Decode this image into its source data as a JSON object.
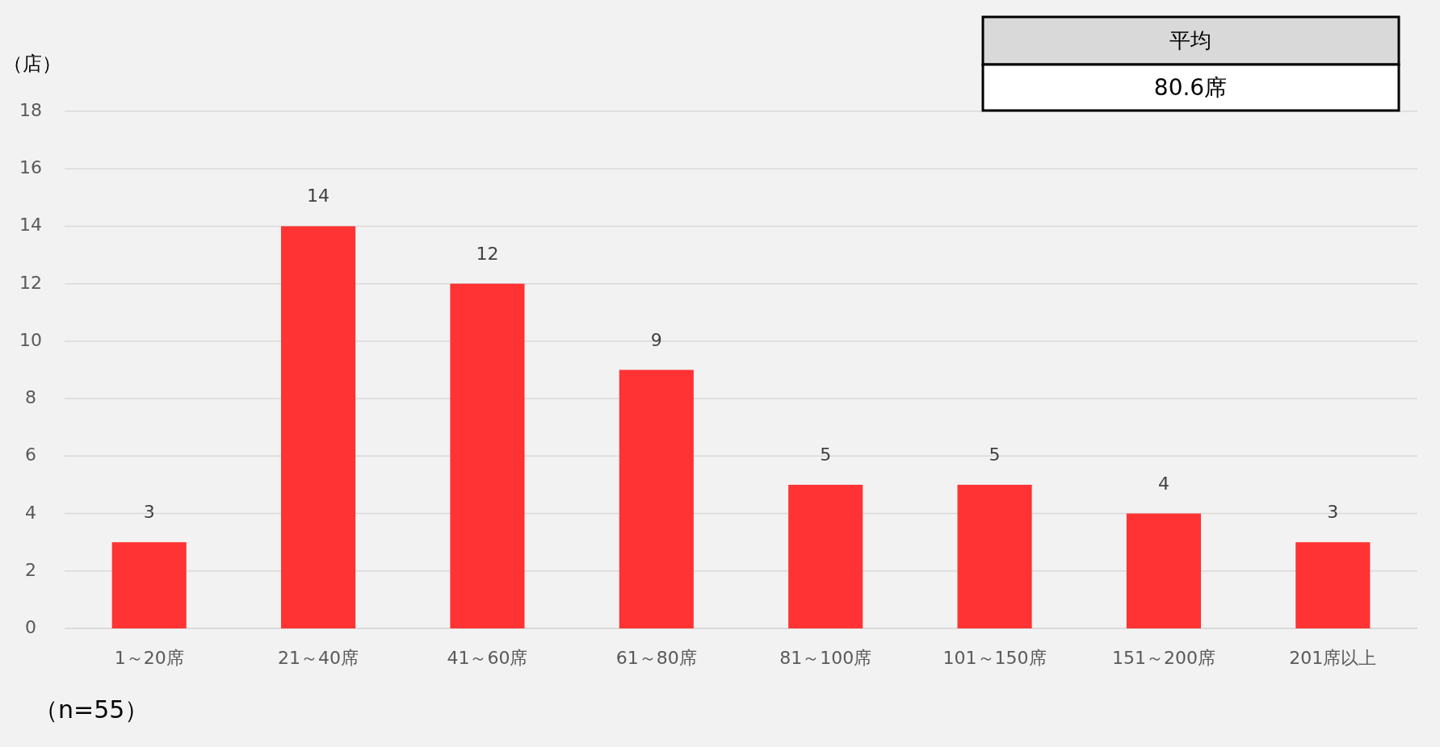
{
  "chart_data": {
    "type": "bar",
    "ylabel": "（店）",
    "categories": [
      "1～20席",
      "21～40席",
      "41～60席",
      "61～80席",
      "81～100席",
      "101～150席",
      "151～200席",
      "201席以上"
    ],
    "values": [
      3,
      14,
      12,
      9,
      5,
      5,
      4,
      3
    ],
    "color": "#ff3333",
    "ylim": [
      0,
      18
    ],
    "yticks": [
      0,
      2,
      4,
      6,
      8,
      10,
      12,
      14,
      16,
      18
    ],
    "grid": "y",
    "data_labels": true,
    "annotations": [
      "平均",
      "80.6席",
      "（n=55）"
    ]
  }
}
